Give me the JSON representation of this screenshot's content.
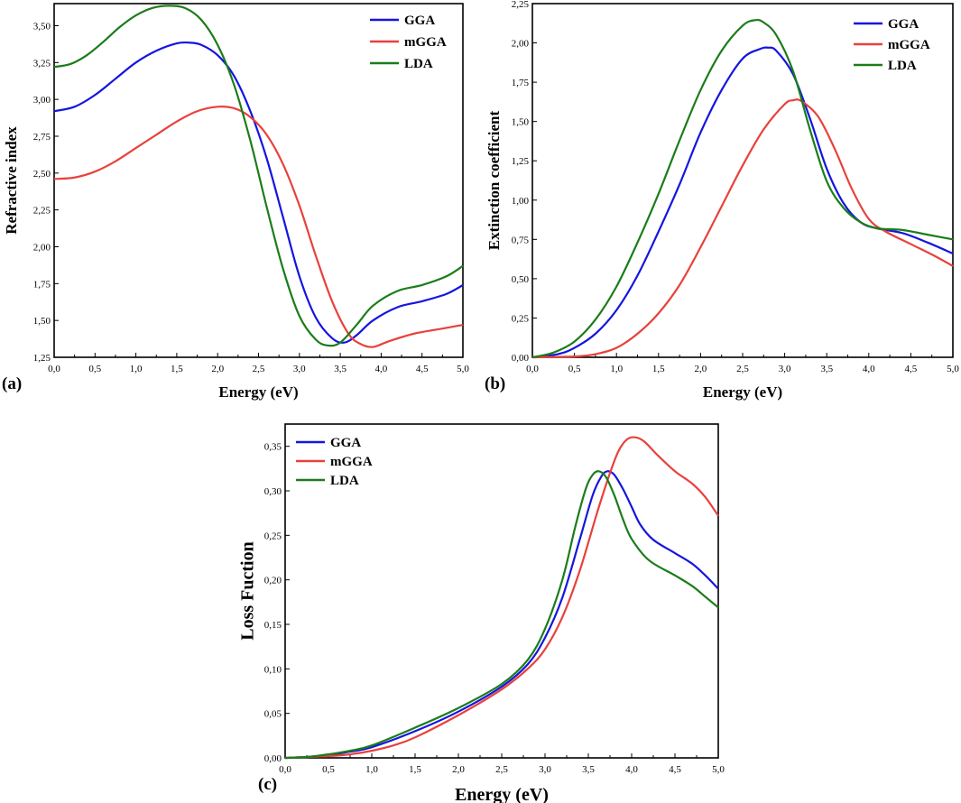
{
  "colors": {
    "GGA": "#1515e0",
    "mGGA": "#e8413c",
    "LDA": "#1a7d1a"
  },
  "chart_data": [
    {
      "id": "a",
      "type": "line",
      "panel_label": "(a)",
      "xlabel": "Energy (eV)",
      "ylabel": "Refractive index",
      "xlim": [
        0,
        5
      ],
      "ylim": [
        1.25,
        3.65
      ],
      "xticks": [
        0,
        0.5,
        1,
        1.5,
        2,
        2.5,
        3,
        3.5,
        4,
        4.5,
        5
      ],
      "xtick_labels": [
        "0,0",
        "0,5",
        "1,0",
        "1,5",
        "2,0",
        "2,5",
        "3,0",
        "3,5",
        "4,0",
        "4,5",
        "5,0"
      ],
      "yticks": [
        1.25,
        1.5,
        1.75,
        2,
        2.25,
        2.5,
        2.75,
        3,
        3.25,
        3.5
      ],
      "ytick_labels": [
        "1,25",
        "1,50",
        "1,75",
        "2,00",
        "2,25",
        "2,50",
        "2,75",
        "3,00",
        "3,25",
        "3,50"
      ],
      "legend": [
        "GGA",
        "mGGA",
        "LDA"
      ],
      "series": [
        {
          "name": "GGA",
          "x": [
            0,
            0.25,
            0.5,
            0.75,
            1.0,
            1.25,
            1.5,
            1.65,
            1.8,
            2.0,
            2.2,
            2.4,
            2.6,
            2.8,
            3.0,
            3.2,
            3.4,
            3.55,
            3.7,
            3.9,
            4.2,
            4.5,
            4.8,
            5.0
          ],
          "y": [
            2.92,
            2.95,
            3.03,
            3.14,
            3.25,
            3.33,
            3.38,
            3.385,
            3.37,
            3.3,
            3.16,
            2.92,
            2.6,
            2.2,
            1.8,
            1.52,
            1.38,
            1.35,
            1.4,
            1.5,
            1.59,
            1.63,
            1.68,
            1.74
          ]
        },
        {
          "name": "mGGA",
          "x": [
            0,
            0.25,
            0.5,
            0.75,
            1.0,
            1.25,
            1.5,
            1.75,
            2.0,
            2.2,
            2.4,
            2.6,
            2.8,
            3.0,
            3.2,
            3.4,
            3.6,
            3.75,
            3.9,
            4.1,
            4.4,
            4.7,
            5.0
          ],
          "y": [
            2.46,
            2.47,
            2.51,
            2.58,
            2.67,
            2.76,
            2.85,
            2.92,
            2.95,
            2.94,
            2.88,
            2.76,
            2.56,
            2.28,
            1.94,
            1.63,
            1.41,
            1.34,
            1.32,
            1.36,
            1.41,
            1.44,
            1.47
          ]
        },
        {
          "name": "LDA",
          "x": [
            0,
            0.2,
            0.4,
            0.6,
            0.8,
            1.0,
            1.2,
            1.4,
            1.6,
            1.8,
            2.0,
            2.2,
            2.4,
            2.6,
            2.8,
            3.0,
            3.2,
            3.35,
            3.5,
            3.7,
            3.9,
            4.2,
            4.5,
            4.8,
            5.0
          ],
          "y": [
            3.22,
            3.24,
            3.3,
            3.39,
            3.49,
            3.57,
            3.62,
            3.635,
            3.62,
            3.54,
            3.37,
            3.1,
            2.72,
            2.27,
            1.85,
            1.53,
            1.37,
            1.33,
            1.35,
            1.47,
            1.6,
            1.7,
            1.74,
            1.8,
            1.87
          ]
        }
      ]
    },
    {
      "id": "b",
      "type": "line",
      "panel_label": "(b)",
      "xlabel": "Energy (eV)",
      "ylabel": "Extinction coefficient",
      "xlim": [
        0,
        5
      ],
      "ylim": [
        0,
        2.25
      ],
      "xticks": [
        0,
        0.5,
        1,
        1.5,
        2,
        2.5,
        3,
        3.5,
        4,
        4.5,
        5
      ],
      "xtick_labels": [
        "0,0",
        "0,5",
        "1,0",
        "1,5",
        "2,0",
        "2,5",
        "3,0",
        "3,5",
        "4,0",
        "4,5",
        "5,0"
      ],
      "yticks": [
        0,
        0.25,
        0.5,
        0.75,
        1,
        1.25,
        1.5,
        1.75,
        2,
        2.25
      ],
      "ytick_labels": [
        "0,00",
        "0,25",
        "0,50",
        "0,75",
        "1,00",
        "1,25",
        "1,50",
        "1,75",
        "2,00",
        "2,25"
      ],
      "legend": [
        "GGA",
        "mGGA",
        "LDA"
      ],
      "series": [
        {
          "name": "GGA",
          "x": [
            0,
            0.3,
            0.5,
            0.75,
            1.0,
            1.25,
            1.5,
            1.75,
            2.0,
            2.25,
            2.5,
            2.7,
            2.8,
            2.9,
            3.1,
            3.3,
            3.5,
            3.7,
            3.9,
            4.1,
            4.4,
            4.7,
            5.0
          ],
          "y": [
            0.0,
            0.02,
            0.06,
            0.15,
            0.3,
            0.52,
            0.8,
            1.1,
            1.43,
            1.7,
            1.9,
            1.96,
            1.97,
            1.95,
            1.8,
            1.52,
            1.2,
            0.98,
            0.86,
            0.82,
            0.79,
            0.73,
            0.66
          ]
        },
        {
          "name": "mGGA",
          "x": [
            0,
            0.5,
            0.75,
            1.0,
            1.25,
            1.5,
            1.75,
            2.0,
            2.25,
            2.5,
            2.75,
            3.0,
            3.1,
            3.2,
            3.4,
            3.6,
            3.8,
            4.0,
            4.2,
            4.5,
            4.8,
            5.0
          ],
          "y": [
            0.0,
            0.005,
            0.02,
            0.06,
            0.15,
            0.28,
            0.46,
            0.7,
            0.96,
            1.22,
            1.45,
            1.61,
            1.635,
            1.63,
            1.53,
            1.32,
            1.07,
            0.88,
            0.8,
            0.72,
            0.64,
            0.58
          ]
        },
        {
          "name": "LDA",
          "x": [
            0,
            0.25,
            0.5,
            0.75,
            1.0,
            1.25,
            1.5,
            1.75,
            2.0,
            2.25,
            2.5,
            2.65,
            2.75,
            2.9,
            3.1,
            3.3,
            3.5,
            3.7,
            3.9,
            4.1,
            4.4,
            4.7,
            5.0
          ],
          "y": [
            0.0,
            0.03,
            0.1,
            0.24,
            0.45,
            0.73,
            1.04,
            1.38,
            1.7,
            1.95,
            2.11,
            2.145,
            2.13,
            2.05,
            1.82,
            1.45,
            1.12,
            0.95,
            0.86,
            0.82,
            0.81,
            0.78,
            0.75
          ]
        }
      ]
    },
    {
      "id": "c",
      "type": "line",
      "panel_label": "(c)",
      "xlabel": "Energy (eV)",
      "ylabel": "Loss Fuction",
      "xlim": [
        0,
        5
      ],
      "ylim": [
        0,
        0.375
      ],
      "xticks": [
        0,
        0.5,
        1,
        1.5,
        2,
        2.5,
        3,
        3.5,
        4,
        4.5,
        5
      ],
      "xtick_labels": [
        "0,0",
        "0,5",
        "1,0",
        "1,5",
        "2,0",
        "2,5",
        "3,0",
        "3,5",
        "4,0",
        "4,5",
        "5,0"
      ],
      "yticks": [
        0,
        0.05,
        0.1,
        0.15,
        0.2,
        0.25,
        0.3,
        0.35
      ],
      "ytick_labels": [
        "0,00",
        "0,05",
        "0,10",
        "0,15",
        "0,20",
        "0,25",
        "0,30",
        "0,35"
      ],
      "legend": [
        "GGA",
        "mGGA",
        "LDA"
      ],
      "series": [
        {
          "name": "GGA",
          "x": [
            0,
            0.25,
            0.5,
            0.75,
            1.0,
            1.5,
            2.0,
            2.5,
            2.8,
            3.0,
            3.2,
            3.4,
            3.55,
            3.65,
            3.72,
            3.8,
            3.9,
            4.0,
            4.1,
            4.25,
            4.5,
            4.7,
            4.85,
            5.0
          ],
          "y": [
            0.0,
            0.001,
            0.003,
            0.007,
            0.012,
            0.03,
            0.052,
            0.08,
            0.105,
            0.135,
            0.18,
            0.245,
            0.295,
            0.316,
            0.322,
            0.318,
            0.302,
            0.282,
            0.262,
            0.245,
            0.23,
            0.218,
            0.205,
            0.19
          ]
        },
        {
          "name": "mGGA",
          "x": [
            0,
            0.5,
            0.75,
            1.0,
            1.25,
            1.5,
            2.0,
            2.5,
            2.8,
            3.0,
            3.2,
            3.4,
            3.6,
            3.75,
            3.85,
            3.95,
            4.05,
            4.15,
            4.3,
            4.5,
            4.7,
            4.85,
            5.0
          ],
          "y": [
            0.0,
            0.002,
            0.004,
            0.008,
            0.014,
            0.023,
            0.048,
            0.077,
            0.1,
            0.122,
            0.158,
            0.21,
            0.275,
            0.32,
            0.345,
            0.358,
            0.36,
            0.355,
            0.34,
            0.322,
            0.308,
            0.293,
            0.272
          ]
        },
        {
          "name": "LDA",
          "x": [
            0,
            0.25,
            0.5,
            0.75,
            1.0,
            1.5,
            2.0,
            2.5,
            2.8,
            3.0,
            3.2,
            3.35,
            3.47,
            3.55,
            3.62,
            3.7,
            3.8,
            3.9,
            4.0,
            4.2,
            4.5,
            4.7,
            4.85,
            5.0
          ],
          "y": [
            0.0,
            0.001,
            0.004,
            0.008,
            0.014,
            0.034,
            0.056,
            0.083,
            0.11,
            0.145,
            0.2,
            0.26,
            0.302,
            0.318,
            0.322,
            0.316,
            0.295,
            0.268,
            0.246,
            0.222,
            0.205,
            0.193,
            0.181,
            0.169
          ]
        }
      ]
    }
  ]
}
